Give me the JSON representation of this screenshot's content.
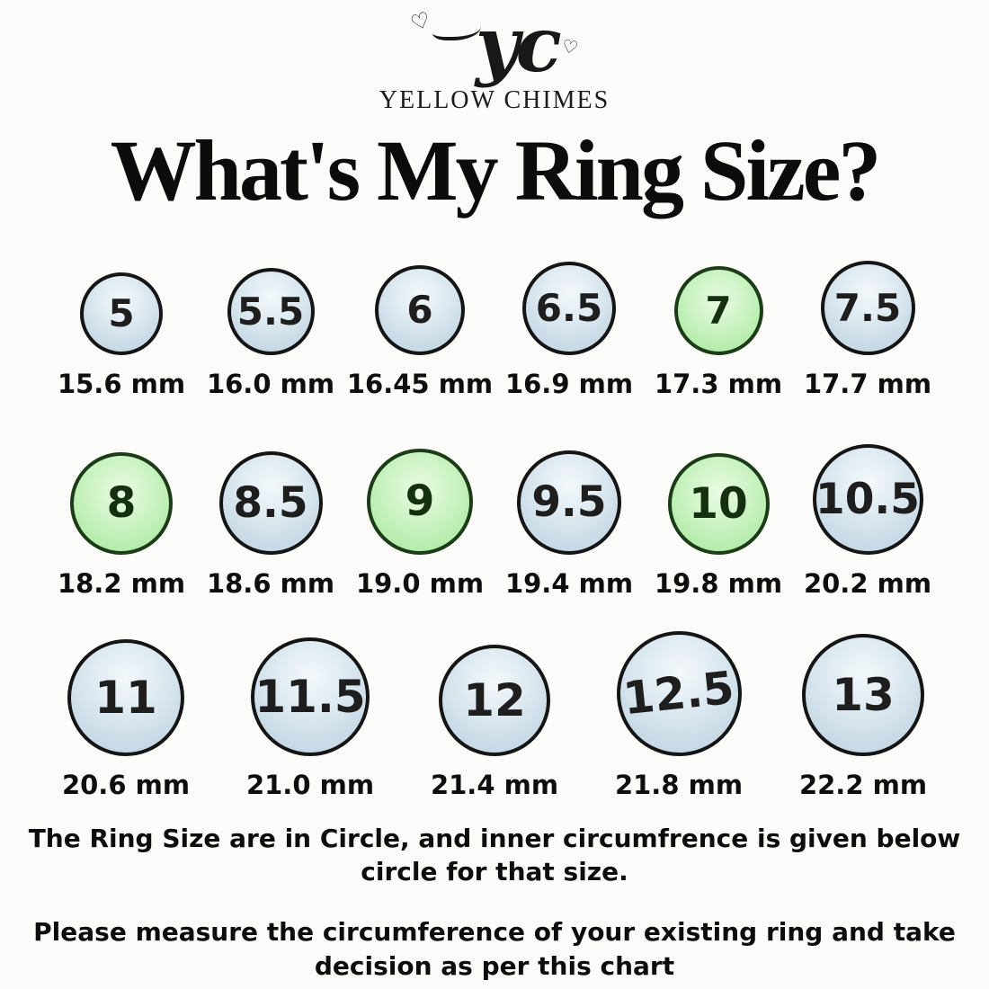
{
  "brand": {
    "monogram": "yc",
    "name": "YELLOW CHIMES"
  },
  "title": "What's My Ring Size?",
  "rows": [
    {
      "items": [
        {
          "size": "5",
          "mm": "15.6 mm",
          "color": "blue"
        },
        {
          "size": "5.5",
          "mm": "16.0 mm",
          "color": "blue"
        },
        {
          "size": "6",
          "mm": "16.45 mm",
          "color": "blue"
        },
        {
          "size": "6.5",
          "mm": "16.9 mm",
          "color": "blue"
        },
        {
          "size": "7",
          "mm": "17.3 mm",
          "color": "green"
        },
        {
          "size": "7.5",
          "mm": "17.7 mm",
          "color": "blue"
        }
      ]
    },
    {
      "items": [
        {
          "size": "8",
          "mm": "18.2 mm",
          "color": "green"
        },
        {
          "size": "8.5",
          "mm": "18.6 mm",
          "color": "blue"
        },
        {
          "size": "9",
          "mm": "19.0 mm",
          "color": "green"
        },
        {
          "size": "9.5",
          "mm": "19.4 mm",
          "color": "blue"
        },
        {
          "size": "10",
          "mm": "19.8 mm",
          "color": "green"
        },
        {
          "size": "10.5",
          "mm": "20.2 mm",
          "color": "blue"
        }
      ]
    },
    {
      "items": [
        {
          "size": "11",
          "mm": "20.6 mm",
          "color": "blue"
        },
        {
          "size": "11.5",
          "mm": "21.0 mm",
          "color": "blue"
        },
        {
          "size": "12",
          "mm": "21.4 mm",
          "color": "blue"
        },
        {
          "size": "12.5",
          "mm": "21.8 mm",
          "color": "blue"
        },
        {
          "size": "13",
          "mm": "22.2 mm",
          "color": "blue"
        }
      ]
    }
  ],
  "footer": {
    "note1": {
      "line1": "The Ring Size are in Circle, and inner circumfrence is  given below",
      "line2": "circle for that size."
    },
    "note2": {
      "line1": "Please measure the circumference of your existing ring and take",
      "line2": "decision as per this chart"
    }
  },
  "colors": {
    "highlight_green": "#a2e59b",
    "circle_blue": "#c9dbe7",
    "stroke": "#151515",
    "background": "#fbfbfa"
  },
  "chart_data": {
    "type": "table",
    "title": "What's My Ring Size?",
    "columns": [
      "ring_size",
      "inner_circumfrence_mm"
    ],
    "rows": [
      [
        "5",
        15.6
      ],
      [
        "5.5",
        16.0
      ],
      [
        "6",
        16.45
      ],
      [
        "6.5",
        16.9
      ],
      [
        "7",
        17.3
      ],
      [
        "7.5",
        17.7
      ],
      [
        "8",
        18.2
      ],
      [
        "8.5",
        18.6
      ],
      [
        "9",
        19.0
      ],
      [
        "9.5",
        19.4
      ],
      [
        "10",
        19.8
      ],
      [
        "10.5",
        20.2
      ],
      [
        "11",
        20.6
      ],
      [
        "11.5",
        21.0
      ],
      [
        "12",
        21.4
      ],
      [
        "12.5",
        21.8
      ],
      [
        "13",
        22.2
      ]
    ],
    "highlighted_sizes": [
      "7",
      "8",
      "9",
      "10"
    ],
    "layout": "3 rows of circles; circle diameter grows with size; measurement labeled below each circle"
  }
}
